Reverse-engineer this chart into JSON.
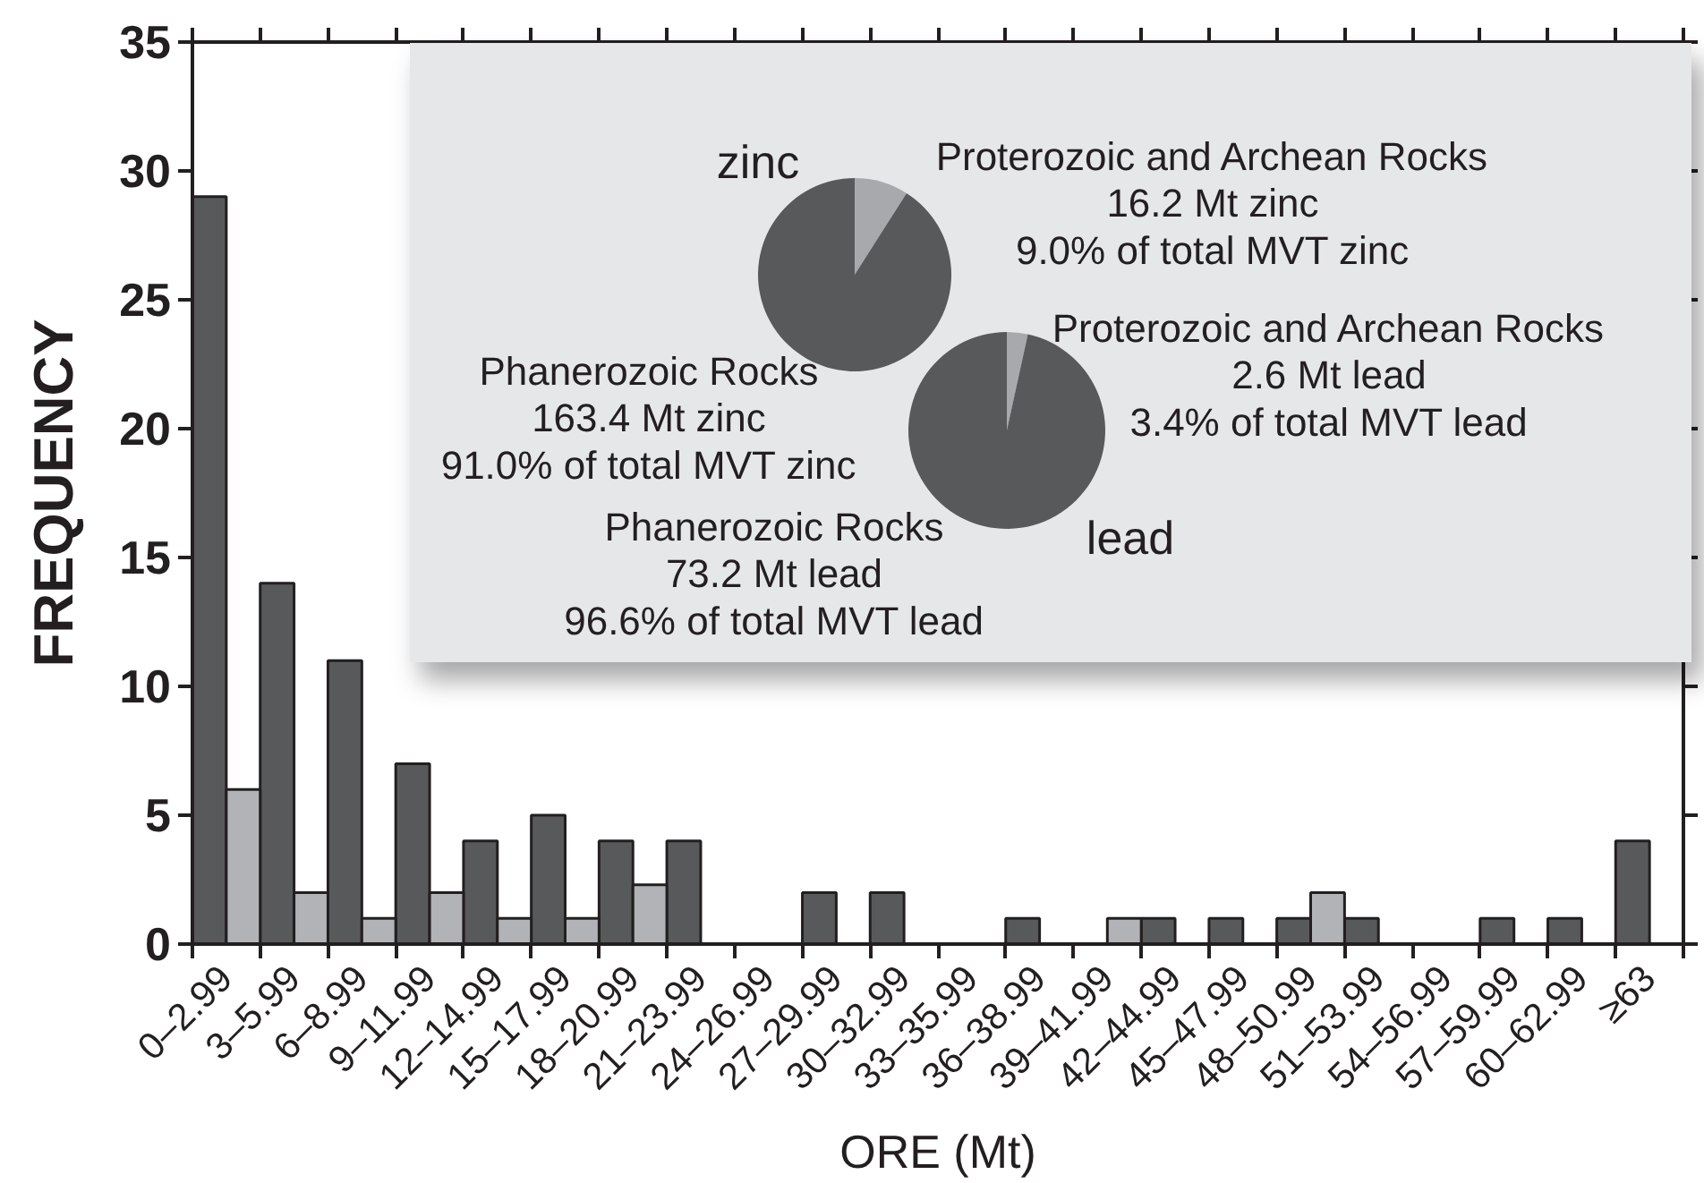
{
  "chart_data": [
    {
      "type": "pie",
      "title": "zinc",
      "categories": [
        "Proterozoic and Archean Rocks",
        "Phanerozoic Rocks"
      ],
      "values": [
        16.2,
        163.4
      ],
      "colors": [
        "#a7a9ac",
        "#58595b"
      ],
      "value_labels": [
        "16.2 Mt zinc\n9.0% of total MVT zinc",
        "163.4 Mt zinc\n91.0% of total MVT zinc"
      ]
    },
    {
      "type": "pie",
      "annotations": [
        "lead"
      ],
      "categories": [
        "Proterozoic and Archean Rocks",
        "Phanerozoic Rocks"
      ],
      "values": [
        2.6,
        73.2
      ],
      "colors": [
        "#a7a9ac",
        "#58595b"
      ],
      "value_labels": [
        "2.6 Mt lead\n3.4% of total MVT lead",
        "73.2 Mt lead\n96.6% of total MVT lead"
      ]
    },
    {
      "type": "bar",
      "xlabel": "ORE (Mt)",
      "ylabel": "FREQUENCY",
      "categories": [
        "0–2.99",
        "3–5.99",
        "6–8.99",
        "9–11.99",
        "12–14.99",
        "15–17.99",
        "18–20.99",
        "21–23.99",
        "24–26.99",
        "27–29.99",
        "30–32.99",
        "33–35.99",
        "36–38.99",
        "39–41.99",
        "42–44.99",
        "45–47.99",
        "48–50.99",
        "51–53.99",
        "54–56.99",
        "57–59.99",
        "60–62.99",
        "≥63"
      ],
      "series": [
        {
          "color": "#58595b",
          "values": [
            29,
            14,
            11,
            7,
            4,
            5,
            4,
            4,
            0,
            2,
            2,
            0,
            1,
            0,
            1,
            1,
            1,
            1,
            0,
            1,
            1,
            4
          ]
        },
        {
          "color": "#b1b3b6",
          "values": [
            6,
            2,
            1,
            2,
            1,
            1,
            2.3,
            0,
            0,
            0,
            0,
            0,
            0,
            1,
            0,
            0,
            2,
            0,
            0,
            0,
            0,
            0
          ]
        }
      ],
      "ylim": [
        0,
        35
      ],
      "yticks": [
        0,
        5,
        10,
        15,
        20,
        25,
        30,
        35
      ],
      "grid": false
    }
  ]
}
